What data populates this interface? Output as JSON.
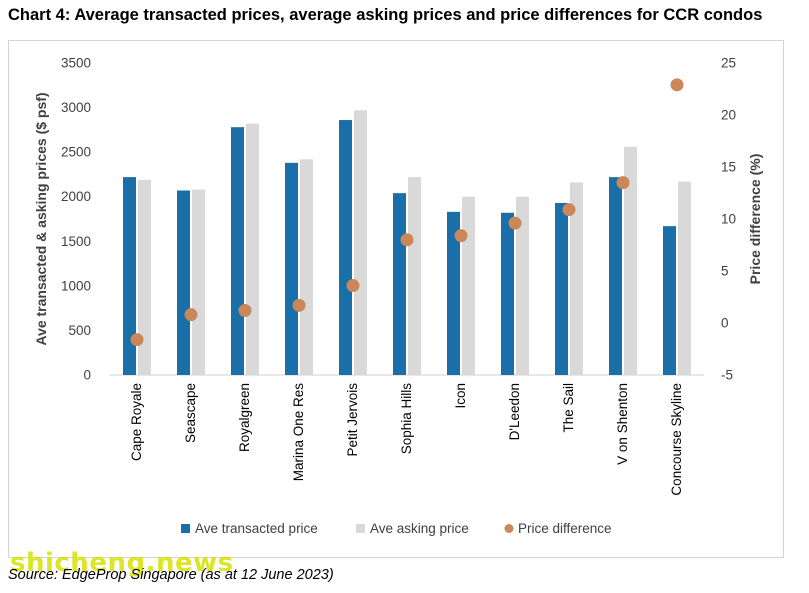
{
  "title": "Chart 4: Average transacted prices, average asking prices and price differences for CCR condos",
  "source": "Source: EdgeProp Singapore (as at 12 June 2023)",
  "watermark": "shicheng.news",
  "colors": {
    "transacted": "#1a6fa9",
    "asking": "#d9d9d9",
    "difference": "#c9875a",
    "axis_text": "#404040"
  },
  "chart_data": {
    "type": "bar",
    "title": "",
    "ylabel": "Ave transacted & asking prices ($ psf)",
    "y2label": "Price difference (%)",
    "ylim": [
      0,
      3500
    ],
    "y2lim": [
      -5,
      25
    ],
    "yticks": [
      0,
      500,
      1000,
      1500,
      2000,
      2500,
      3000,
      3500
    ],
    "y2ticks": [
      -5,
      0,
      5,
      10,
      15,
      20,
      25
    ],
    "grid": false,
    "legend_position": "bottom",
    "categories": [
      "Cape Royale",
      "Seascape",
      "Royalgreen",
      "Marina One Res",
      "Petit Jervois",
      "Sophia Hills",
      "Icon",
      "D'Leedon",
      "The Sail",
      "V on Shenton",
      "Concourse Skyline"
    ],
    "series": [
      {
        "name": "Ave transacted price",
        "type": "bar",
        "axis": "left",
        "values": [
          2220,
          2070,
          2780,
          2380,
          2860,
          2040,
          1830,
          1820,
          1930,
          2220,
          1670
        ]
      },
      {
        "name": "Ave asking price",
        "type": "bar",
        "axis": "left",
        "values": [
          2190,
          2080,
          2820,
          2420,
          2970,
          2220,
          2000,
          2000,
          2160,
          2560,
          2170
        ]
      },
      {
        "name": "Price difference",
        "type": "scatter",
        "axis": "right",
        "values": [
          -1.6,
          0.8,
          1.2,
          1.7,
          3.6,
          8.0,
          8.4,
          9.6,
          10.9,
          13.5,
          22.9
        ]
      }
    ]
  }
}
